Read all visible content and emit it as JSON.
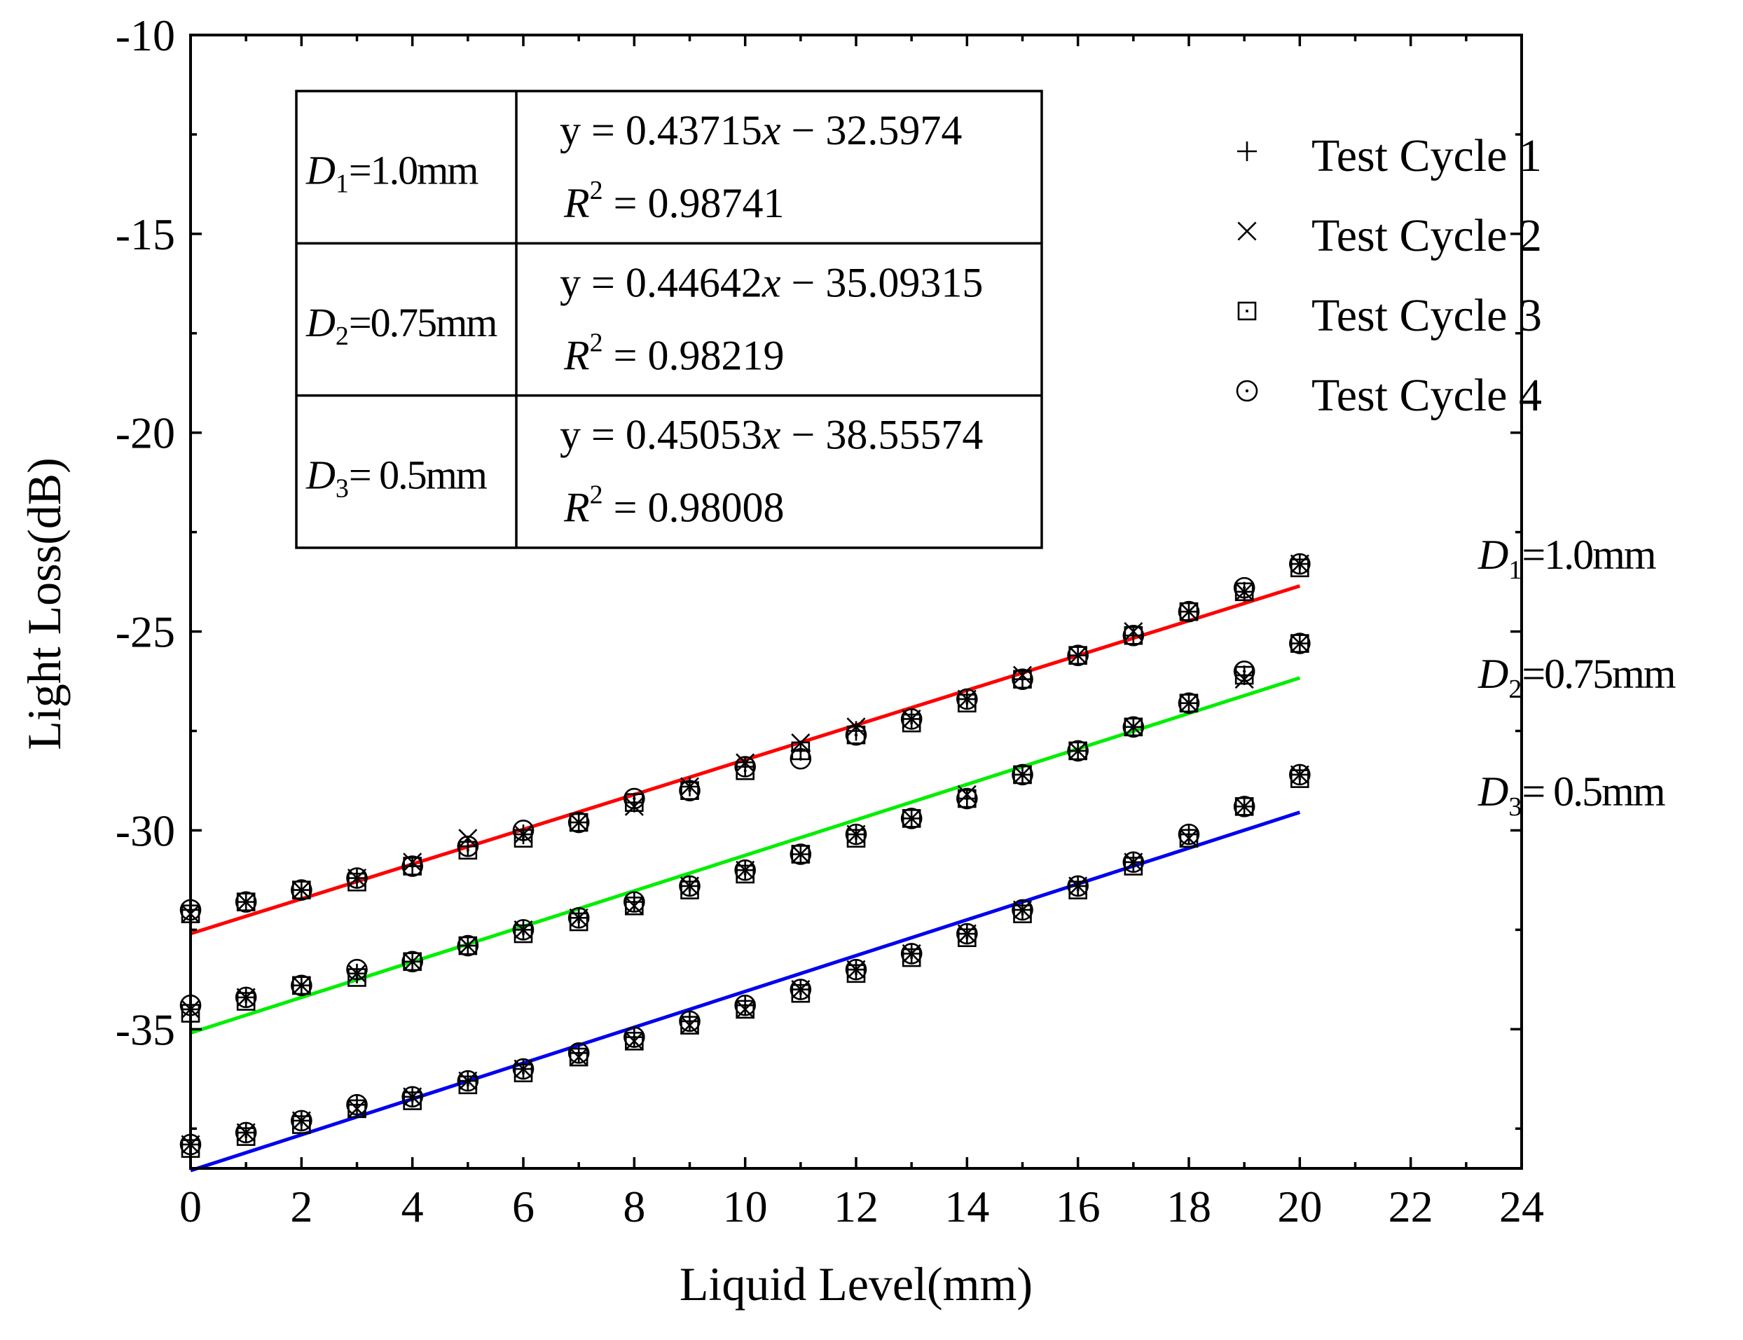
{
  "chart_data": {
    "type": "scatter",
    "title": "",
    "xlabel": "Liquid Level(mm)",
    "ylabel": "Light Loss(dB)",
    "xlim": [
      0,
      24
    ],
    "ylim": [
      -38.5,
      -10
    ],
    "xticks": [
      0,
      2,
      4,
      6,
      8,
      10,
      12,
      14,
      16,
      18,
      20,
      22,
      24
    ],
    "yticks": [
      -10,
      -15,
      -20,
      -25,
      -30,
      -35
    ],
    "x": [
      0,
      1,
      2,
      3,
      4,
      5,
      6,
      7,
      8,
      9,
      10,
      11,
      12,
      13,
      14,
      15,
      16,
      17,
      18,
      19,
      20
    ],
    "legend": {
      "position": "top-right",
      "entries": [
        {
          "label": "Test Cycle 1",
          "marker": "plus"
        },
        {
          "label": "Test Cycle 2",
          "marker": "cross"
        },
        {
          "label": "Test Cycle 3",
          "marker": "square"
        },
        {
          "label": "Test Cycle 4",
          "marker": "circle"
        }
      ]
    },
    "series": [
      {
        "name": "D1",
        "label_sym": "D",
        "label_sub": "1",
        "label_val": "=1.0mm",
        "table_label_val": "=1.0mm",
        "color": "#ff0000",
        "fit": {
          "slope": 0.43715,
          "intercept": -32.5974,
          "x_range": [
            0,
            20
          ]
        },
        "equation": {
          "lhs": "y = 0.43715",
          "var": "x",
          "rhs": " − 32.5974",
          "r2": "= 0.98741"
        },
        "cycles": [
          [
            -32.0,
            -31.8,
            -31.5,
            -31.2,
            -30.9,
            -30.4,
            -30.1,
            -29.8,
            -29.3,
            -28.9,
            -28.4,
            -28.0,
            -27.5,
            -27.2,
            -26.7,
            -26.2,
            -25.6,
            -25.1,
            -24.5,
            -24.0,
            -23.3
          ],
          [
            -32.1,
            -31.8,
            -31.5,
            -31.2,
            -30.8,
            -30.2,
            -30.1,
            -29.8,
            -29.4,
            -28.9,
            -28.3,
            -27.8,
            -27.4,
            -27.2,
            -26.7,
            -26.1,
            -25.6,
            -25.0,
            -24.5,
            -24.0,
            -23.3
          ],
          [
            -32.1,
            -31.8,
            -31.5,
            -31.3,
            -30.9,
            -30.5,
            -30.2,
            -29.8,
            -29.3,
            -29.0,
            -28.5,
            -28.0,
            -27.6,
            -27.3,
            -26.8,
            -26.2,
            -25.6,
            -25.1,
            -24.5,
            -24.0,
            -23.4
          ],
          [
            -32.0,
            -31.8,
            -31.5,
            -31.2,
            -30.9,
            -30.4,
            -30.0,
            -29.8,
            -29.2,
            -29.0,
            -28.4,
            -28.2,
            -27.6,
            -27.2,
            -26.7,
            -26.2,
            -25.6,
            -25.1,
            -24.5,
            -23.9,
            -23.3
          ]
        ]
      },
      {
        "name": "D2",
        "label_sym": "D",
        "label_sub": "2",
        "label_val": "=0.75mm",
        "table_label_val": "=0.75mm",
        "color": "#00ee00",
        "fit": {
          "slope": 0.44642,
          "intercept": -35.09315,
          "x_range": [
            0,
            20
          ]
        },
        "equation": {
          "lhs": "y = 0.44642",
          "var": "x",
          "rhs": " − 35.09315",
          "r2": "= 0.98219"
        },
        "cycles": [
          [
            -34.5,
            -34.2,
            -33.9,
            -33.6,
            -33.3,
            -32.9,
            -32.5,
            -32.2,
            -31.8,
            -31.4,
            -31.0,
            -30.6,
            -30.1,
            -29.7,
            -29.2,
            -28.6,
            -28.0,
            -27.4,
            -26.8,
            -26.1,
            -25.3
          ],
          [
            -34.5,
            -34.2,
            -33.9,
            -33.6,
            -33.3,
            -32.9,
            -32.5,
            -32.2,
            -31.9,
            -31.4,
            -31.0,
            -30.6,
            -30.1,
            -29.7,
            -29.1,
            -28.6,
            -28.0,
            -27.4,
            -26.8,
            -26.2,
            -25.3
          ],
          [
            -34.6,
            -34.3,
            -33.9,
            -33.7,
            -33.3,
            -32.9,
            -32.6,
            -32.3,
            -31.9,
            -31.5,
            -31.1,
            -30.6,
            -30.2,
            -29.7,
            -29.2,
            -28.6,
            -28.0,
            -27.4,
            -26.8,
            -26.1,
            -25.3
          ],
          [
            -34.4,
            -34.2,
            -33.9,
            -33.5,
            -33.3,
            -32.9,
            -32.5,
            -32.2,
            -31.8,
            -31.4,
            -31.0,
            -30.6,
            -30.1,
            -29.7,
            -29.2,
            -28.6,
            -28.0,
            -27.4,
            -26.8,
            -26.0,
            -25.3
          ]
        ]
      },
      {
        "name": "D3",
        "label_sym": "D",
        "label_sub": "3",
        "label_val": "= 0.5mm",
        "table_label_val": "= 0.5mm",
        "color": "#0000ee",
        "fit": {
          "slope": 0.45053,
          "intercept": -38.55574,
          "x_range": [
            0,
            20
          ]
        },
        "equation": {
          "lhs": "y = 0.45053",
          "var": "x",
          "rhs": " − 38.55574",
          "r2": "= 0.98008"
        },
        "cycles": [
          [
            -37.9,
            -37.6,
            -37.3,
            -36.9,
            -36.7,
            -36.3,
            -36.0,
            -35.6,
            -35.2,
            -34.8,
            -34.4,
            -34.0,
            -33.5,
            -33.1,
            -32.6,
            -32.0,
            -31.4,
            -30.8,
            -30.1,
            -29.4,
            -28.6
          ],
          [
            -37.9,
            -37.6,
            -37.3,
            -37.0,
            -36.7,
            -36.3,
            -36.0,
            -35.7,
            -35.3,
            -34.9,
            -34.5,
            -34.0,
            -33.5,
            -33.1,
            -32.6,
            -32.0,
            -31.4,
            -30.8,
            -30.2,
            -29.4,
            -28.6
          ],
          [
            -38.0,
            -37.7,
            -37.4,
            -37.0,
            -36.8,
            -36.4,
            -36.1,
            -35.7,
            -35.3,
            -34.9,
            -34.5,
            -34.1,
            -33.6,
            -33.2,
            -32.7,
            -32.1,
            -31.5,
            -30.9,
            -30.2,
            -29.4,
            -28.7
          ],
          [
            -37.9,
            -37.6,
            -37.3,
            -36.9,
            -36.7,
            -36.3,
            -36.0,
            -35.6,
            -35.2,
            -34.8,
            -34.4,
            -34.0,
            -33.5,
            -33.1,
            -32.6,
            -32.0,
            -31.4,
            -30.8,
            -30.1,
            -29.4,
            -28.6
          ]
        ]
      }
    ]
  }
}
